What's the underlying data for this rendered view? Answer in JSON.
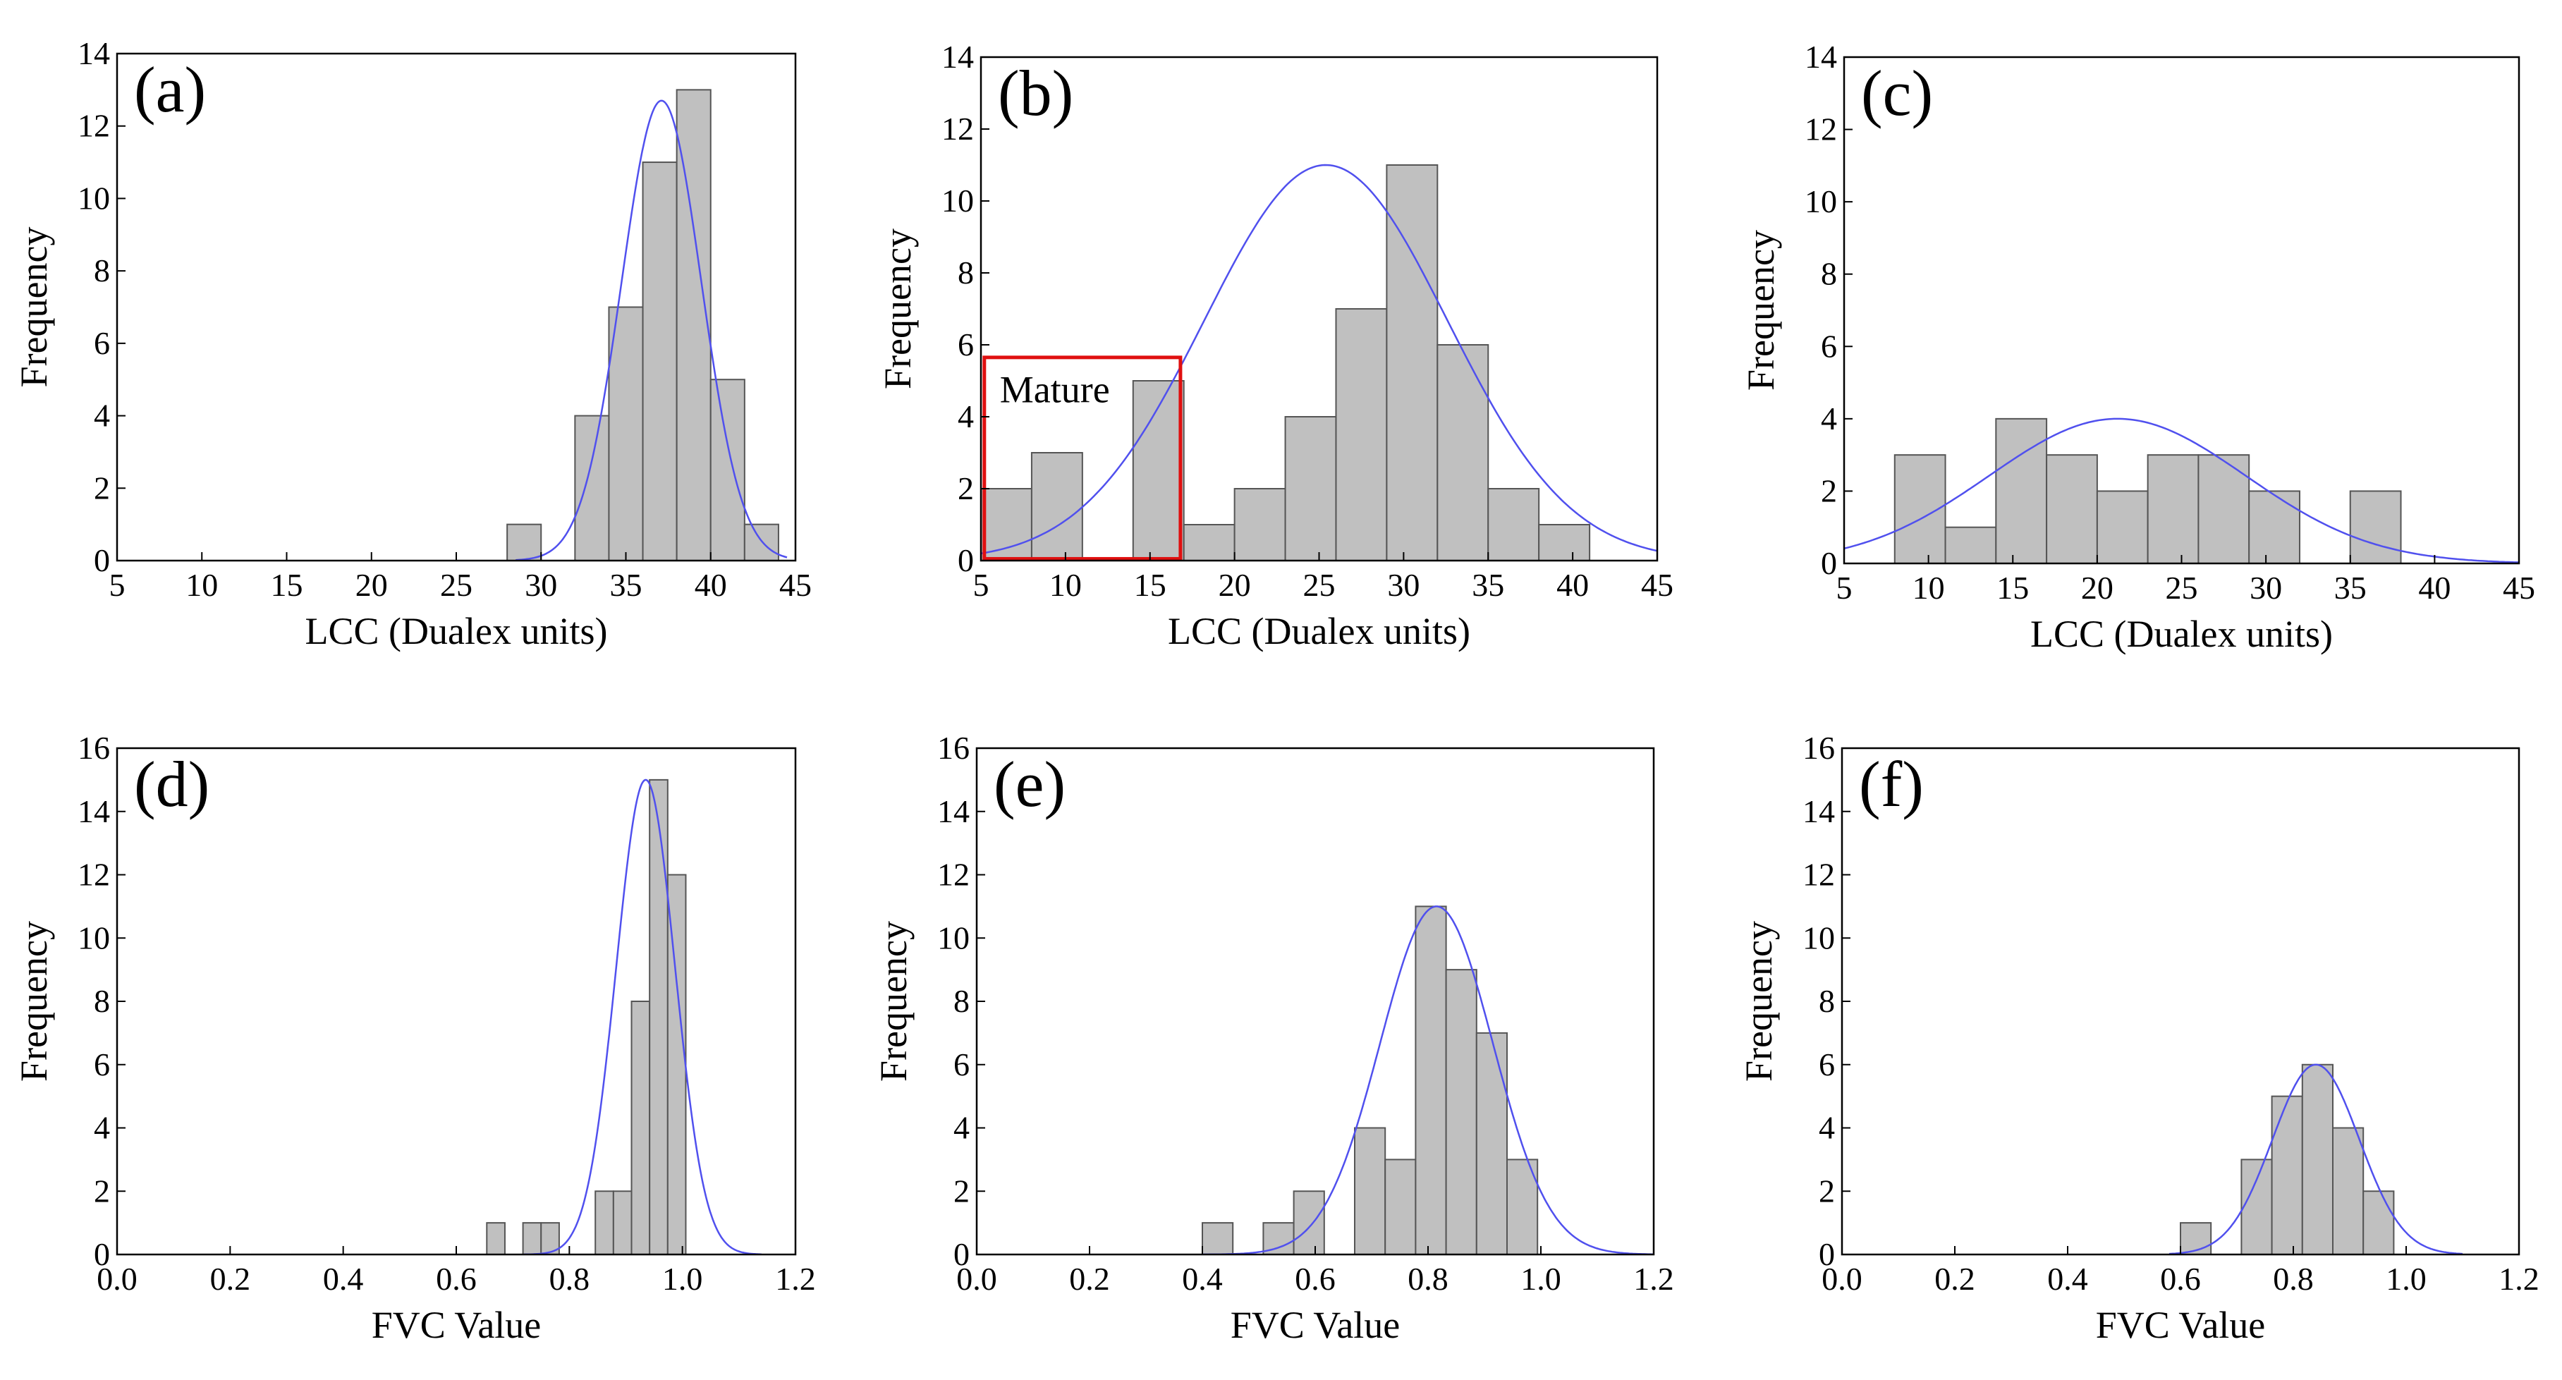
{
  "colors": {
    "bar_fill": "#c0c0c0",
    "bar_edge": "#555555",
    "curve": "#5050ee",
    "highlight": "#e01010",
    "axis": "#000000"
  },
  "chart_data": [
    {
      "panel": "(a)",
      "type": "bar",
      "xlabel": "LCC (Dualex units)",
      "ylabel": "Frequency",
      "xlim": [
        5,
        45
      ],
      "ylim": [
        0,
        14
      ],
      "xticks": [
        5,
        10,
        15,
        20,
        25,
        30,
        35,
        40,
        45
      ],
      "yticks": [
        0,
        2,
        4,
        6,
        8,
        10,
        12,
        14
      ],
      "bin_width": 2,
      "bins": [
        {
          "x": 28,
          "y": 1
        },
        {
          "x": 32,
          "y": 4
        },
        {
          "x": 34,
          "y": 7
        },
        {
          "x": 36,
          "y": 11
        },
        {
          "x": 38,
          "y": 13
        },
        {
          "x": 40,
          "y": 5
        },
        {
          "x": 42,
          "y": 1
        }
      ],
      "normal_fit": {
        "peak": 12.7,
        "mean": 37.1,
        "sd": 2.35,
        "x_range": [
          28.5,
          44.5
        ]
      },
      "grid": false
    },
    {
      "panel": "(b)",
      "type": "bar",
      "xlabel": "LCC (Dualex units)",
      "ylabel": "Frequency",
      "xlim": [
        5,
        45
      ],
      "ylim": [
        0,
        14
      ],
      "xticks": [
        5,
        10,
        15,
        20,
        25,
        30,
        35,
        40,
        45
      ],
      "yticks": [
        0,
        2,
        4,
        6,
        8,
        10,
        12,
        14
      ],
      "bin_width": 3,
      "bins": [
        {
          "x": 5,
          "y": 2
        },
        {
          "x": 8,
          "y": 3
        },
        {
          "x": 14,
          "y": 5
        },
        {
          "x": 17,
          "y": 1
        },
        {
          "x": 20,
          "y": 2
        },
        {
          "x": 23,
          "y": 4
        },
        {
          "x": 26,
          "y": 7
        },
        {
          "x": 29,
          "y": 11
        },
        {
          "x": 32,
          "y": 6
        },
        {
          "x": 35,
          "y": 2
        },
        {
          "x": 38,
          "y": 1
        }
      ],
      "normal_fit": {
        "peak": 11.0,
        "mean": 25.4,
        "sd": 7.2,
        "x_range": [
          5,
          45
        ]
      },
      "annotation": {
        "text": "Mature",
        "box_x": [
          5.2,
          16.8
        ],
        "box_y": [
          0.05,
          5.65
        ]
      },
      "grid": false
    },
    {
      "panel": "(c)",
      "type": "bar",
      "xlabel": "LCC (Dualex units)",
      "ylabel": "Frequency",
      "xlim": [
        5,
        45
      ],
      "ylim": [
        0,
        14
      ],
      "xticks": [
        5,
        10,
        15,
        20,
        25,
        30,
        35,
        40,
        45
      ],
      "yticks": [
        0,
        2,
        4,
        6,
        8,
        10,
        12,
        14
      ],
      "bin_width": 3,
      "bins": [
        {
          "x": 8,
          "y": 3
        },
        {
          "x": 11,
          "y": 1
        },
        {
          "x": 14,
          "y": 4
        },
        {
          "x": 17,
          "y": 3
        },
        {
          "x": 20,
          "y": 2
        },
        {
          "x": 23,
          "y": 3
        },
        {
          "x": 26,
          "y": 3
        },
        {
          "x": 29,
          "y": 2
        },
        {
          "x": 35,
          "y": 2
        }
      ],
      "normal_fit": {
        "peak": 4.0,
        "mean": 21.2,
        "sd": 7.6,
        "x_range": [
          5,
          45
        ]
      },
      "grid": false
    },
    {
      "panel": "(d)",
      "type": "bar",
      "xlabel": "FVC Value",
      "ylabel": "Frequency",
      "xlim": [
        0.0,
        1.2
      ],
      "ylim": [
        0,
        16
      ],
      "xticks": [
        0.0,
        0.2,
        0.4,
        0.6,
        0.8,
        1.0,
        1.2
      ],
      "yticks": [
        0,
        2,
        4,
        6,
        8,
        10,
        12,
        14,
        16
      ],
      "bin_width": 0.032,
      "bins": [
        {
          "x": 0.654,
          "y": 1
        },
        {
          "x": 0.718,
          "y": 1
        },
        {
          "x": 0.75,
          "y": 1
        },
        {
          "x": 0.846,
          "y": 2
        },
        {
          "x": 0.878,
          "y": 2
        },
        {
          "x": 0.91,
          "y": 8
        },
        {
          "x": 0.942,
          "y": 15
        },
        {
          "x": 0.974,
          "y": 12
        }
      ],
      "normal_fit": {
        "peak": 15.0,
        "mean": 0.935,
        "sd": 0.052,
        "x_range": [
          0.72,
          1.14
        ]
      },
      "grid": false
    },
    {
      "panel": "(e)",
      "type": "bar",
      "xlabel": "FVC Value",
      "ylabel": "Frequency",
      "xlim": [
        0.0,
        1.2
      ],
      "ylim": [
        0,
        16
      ],
      "xticks": [
        0.0,
        0.2,
        0.4,
        0.6,
        0.8,
        1.0,
        1.2
      ],
      "yticks": [
        0,
        2,
        4,
        6,
        8,
        10,
        12,
        14,
        16
      ],
      "bin_width": 0.054,
      "bins": [
        {
          "x": 0.4,
          "y": 1
        },
        {
          "x": 0.508,
          "y": 1
        },
        {
          "x": 0.562,
          "y": 2
        },
        {
          "x": 0.67,
          "y": 4
        },
        {
          "x": 0.724,
          "y": 3
        },
        {
          "x": 0.778,
          "y": 11
        },
        {
          "x": 0.832,
          "y": 9
        },
        {
          "x": 0.886,
          "y": 7
        },
        {
          "x": 0.94,
          "y": 3
        }
      ],
      "normal_fit": {
        "peak": 11.0,
        "mean": 0.815,
        "sd": 0.1,
        "x_range": [
          0.4,
          1.2
        ]
      },
      "grid": false
    },
    {
      "panel": "(f)",
      "type": "bar",
      "xlabel": "FVC Value",
      "ylabel": "Frequency",
      "xlim": [
        0.0,
        1.2
      ],
      "ylim": [
        0,
        16
      ],
      "xticks": [
        0.0,
        0.2,
        0.4,
        0.6,
        0.8,
        1.0,
        1.2
      ],
      "yticks": [
        0,
        2,
        4,
        6,
        8,
        10,
        12,
        14,
        16
      ],
      "bin_width": 0.054,
      "bins": [
        {
          "x": 0.6,
          "y": 1
        },
        {
          "x": 0.708,
          "y": 3
        },
        {
          "x": 0.762,
          "y": 5
        },
        {
          "x": 0.816,
          "y": 6
        },
        {
          "x": 0.87,
          "y": 4
        },
        {
          "x": 0.924,
          "y": 2
        }
      ],
      "normal_fit": {
        "peak": 6.0,
        "mean": 0.84,
        "sd": 0.077,
        "x_range": [
          0.58,
          1.1
        ]
      },
      "grid": false
    }
  ]
}
